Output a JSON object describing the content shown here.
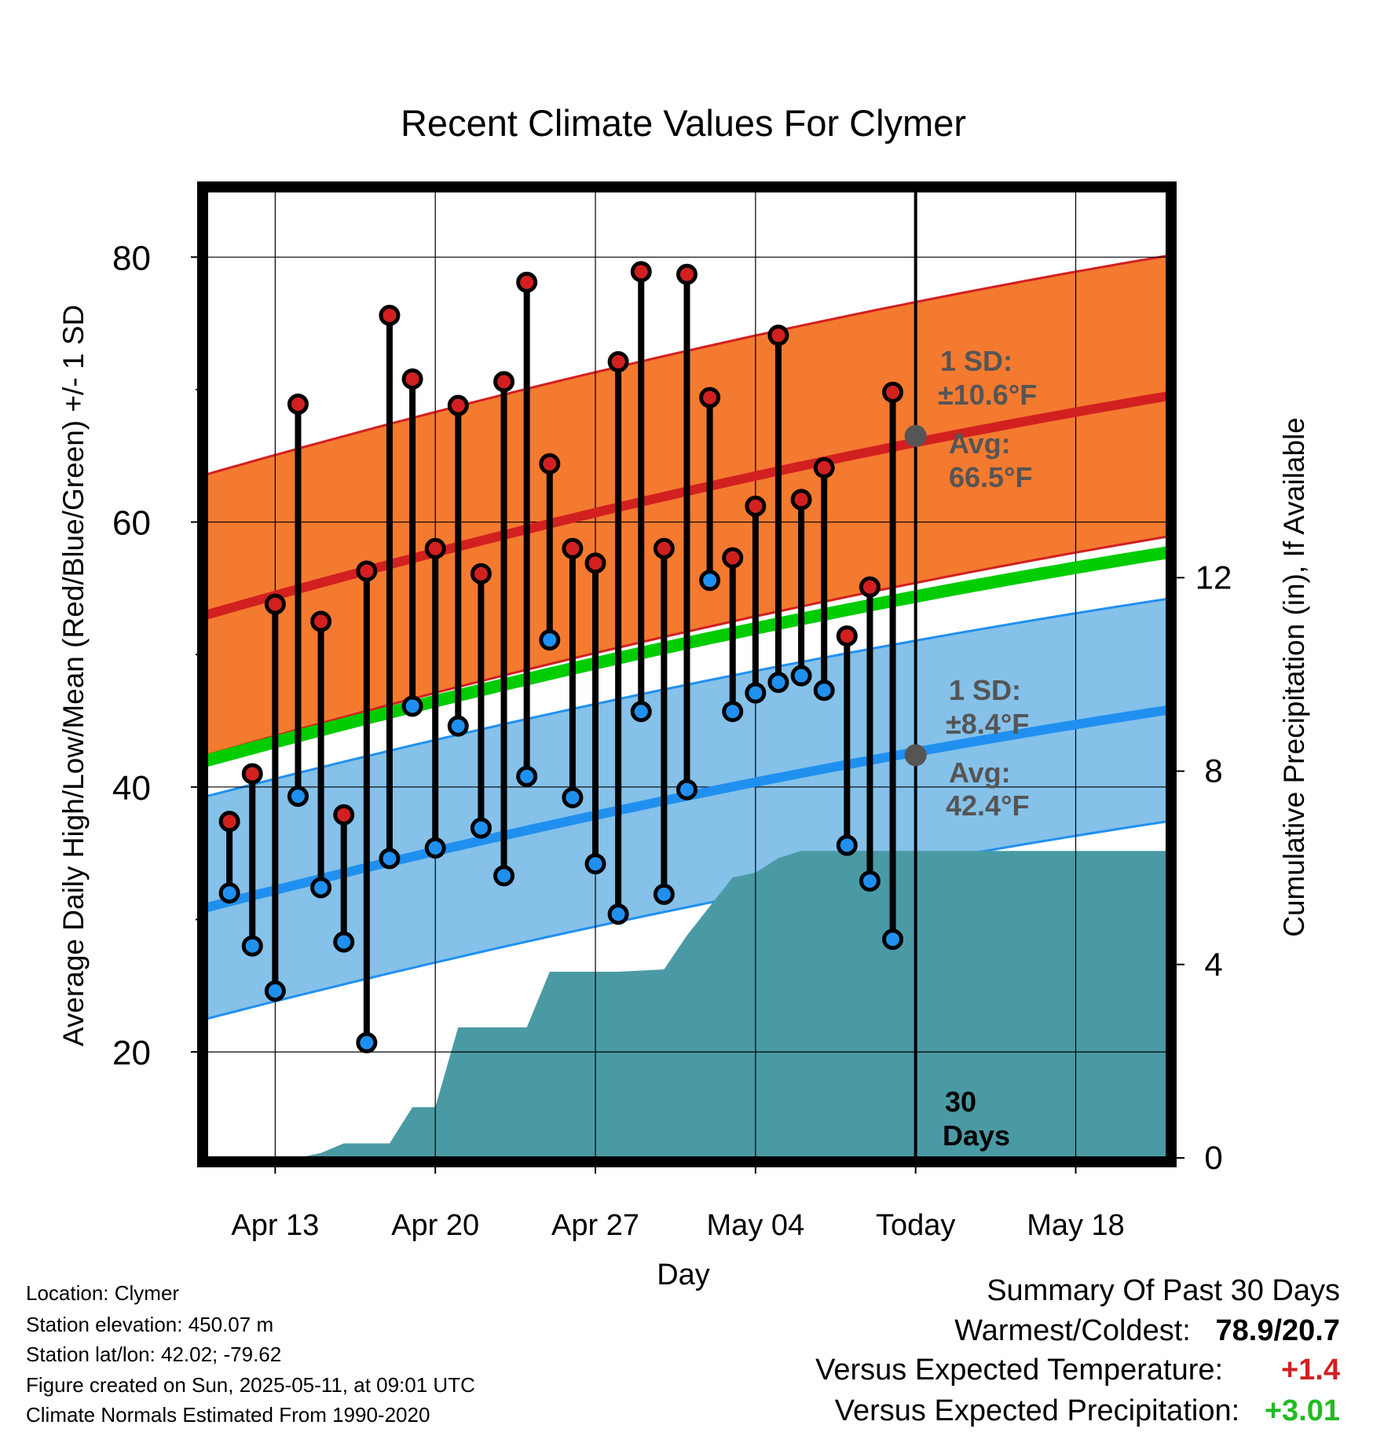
{
  "chart_data": {
    "type": "range-dot",
    "title": "Recent Climate Values For Clymer",
    "xlabel": "Day",
    "ylabel": "Average Daily High/Low/Mean (Red/Blue/Green) +/- 1 SD",
    "y2label": "Cumulative Precipitation (in), If Available",
    "xlim": [
      "Apr 10",
      "May 22"
    ],
    "ylim": [
      12,
      85
    ],
    "y2lim": [
      0,
      20
    ],
    "grid": true,
    "x_ticks": [
      "Apr 13",
      "Apr 20",
      "Apr 27",
      "May 04",
      "Today",
      "May 18"
    ],
    "x_tick_dates": [
      "Apr 13",
      "Apr 20",
      "Apr 27",
      "May 04",
      "May 11",
      "May 18"
    ],
    "y_ticks": [
      20,
      40,
      60,
      80
    ],
    "y2_ticks": [
      0,
      4,
      8,
      12
    ],
    "dates": [
      "Apr 11",
      "Apr 12",
      "Apr 13",
      "Apr 14",
      "Apr 15",
      "Apr 16",
      "Apr 17",
      "Apr 18",
      "Apr 19",
      "Apr 20",
      "Apr 21",
      "Apr 22",
      "Apr 23",
      "Apr 24",
      "Apr 25",
      "Apr 26",
      "Apr 27",
      "Apr 28",
      "Apr 29",
      "Apr 30",
      "May 01",
      "May 02",
      "May 03",
      "May 04",
      "May 05",
      "May 06",
      "May 07",
      "May 08",
      "May 09",
      "May 10"
    ],
    "highs": [
      37.4,
      41.0,
      53.8,
      68.9,
      52.5,
      37.9,
      56.3,
      75.6,
      70.8,
      58.0,
      68.8,
      56.1,
      70.6,
      78.1,
      64.4,
      58.0,
      56.9,
      72.1,
      78.9,
      58.0,
      78.7,
      69.4,
      57.3,
      61.2,
      74.1,
      61.7,
      64.1,
      51.4,
      55.1,
      69.8
    ],
    "lows": [
      32.0,
      28.0,
      24.6,
      39.3,
      32.4,
      28.3,
      20.7,
      34.6,
      46.1,
      35.4,
      44.6,
      36.9,
      33.3,
      40.8,
      51.1,
      39.2,
      34.2,
      30.4,
      45.7,
      31.9,
      39.8,
      55.6,
      45.7,
      47.1,
      47.9,
      48.4,
      47.3,
      35.6,
      32.9,
      28.5
    ],
    "normal_high": {
      "series": "Avg high",
      "start": 53.0,
      "end": 69.5,
      "sd": 10.6
    },
    "normal_low": {
      "series": "Avg low",
      "start": 30.9,
      "end": 45.8,
      "sd": 8.4
    },
    "normal_mean": {
      "series": "Avg mean",
      "start": 42.0,
      "end": 57.7
    },
    "precip_cumulative": [
      [
        "Apr 11",
        0.0
      ],
      [
        "Apr 13",
        0.0
      ],
      [
        "Apr 14",
        0.0
      ],
      [
        "Apr 15",
        0.1
      ],
      [
        "Apr 16",
        0.3
      ],
      [
        "Apr 18",
        0.3
      ],
      [
        "Apr 19",
        1.05
      ],
      [
        "Apr 20",
        1.05
      ],
      [
        "Apr 21",
        2.7
      ],
      [
        "Apr 23",
        2.7
      ],
      [
        "Apr 24",
        2.7
      ],
      [
        "Apr 25",
        3.85
      ],
      [
        "Apr 28",
        3.85
      ],
      [
        "Apr 30",
        3.9
      ],
      [
        "May 01",
        4.6
      ],
      [
        "May 02",
        5.2
      ],
      [
        "May 03",
        5.8
      ],
      [
        "May 04",
        5.9
      ],
      [
        "May 05",
        6.2
      ],
      [
        "May 06",
        6.35
      ],
      [
        "May 10",
        6.35
      ],
      [
        "May 21",
        6.35
      ]
    ],
    "annotations": {
      "high_sd_label": "1 SD:",
      "high_sd_value": "±10.6°F",
      "high_avg_label": "Avg:",
      "high_avg_value": "66.5°F",
      "low_sd_label": "1 SD:",
      "low_sd_value": "±8.4°F",
      "low_avg_label": "Avg:",
      "low_avg_value": "42.4°F",
      "today_avg_high": 66.5,
      "today_avg_low": 42.4,
      "window_label_1": "30",
      "window_label_2": "Days"
    },
    "colors": {
      "high_band": "#f47a30",
      "high_line": "#d22020",
      "low_band": "#85c1e9",
      "low_line": "#2090f0",
      "mean_line": "#00cc00",
      "precip": "#4a9aa5",
      "high_dot": "#d22020",
      "low_dot": "#2090f0",
      "annotation": "#555555"
    }
  },
  "info": {
    "location": "Location: Clymer",
    "elevation": "Station elevation: 450.07 m",
    "latlon": "Station lat/lon: 42.02; -79.62",
    "created": "Figure created on Sun, 2025-05-11, at 09:01 UTC",
    "normals": "Climate Normals Estimated From 1990-2020"
  },
  "summary": {
    "heading": "Summary Of Past 30 Days",
    "warm_cold_label": "Warmest/Coldest:",
    "warm_cold_value": "78.9/20.7",
    "temp_label": "Versus Expected Temperature:",
    "temp_value": "+1.4",
    "temp_color": "#d22020",
    "precip_label": "Versus Expected Precipitation:",
    "precip_value": "+3.01",
    "precip_color": "#22bb22"
  }
}
